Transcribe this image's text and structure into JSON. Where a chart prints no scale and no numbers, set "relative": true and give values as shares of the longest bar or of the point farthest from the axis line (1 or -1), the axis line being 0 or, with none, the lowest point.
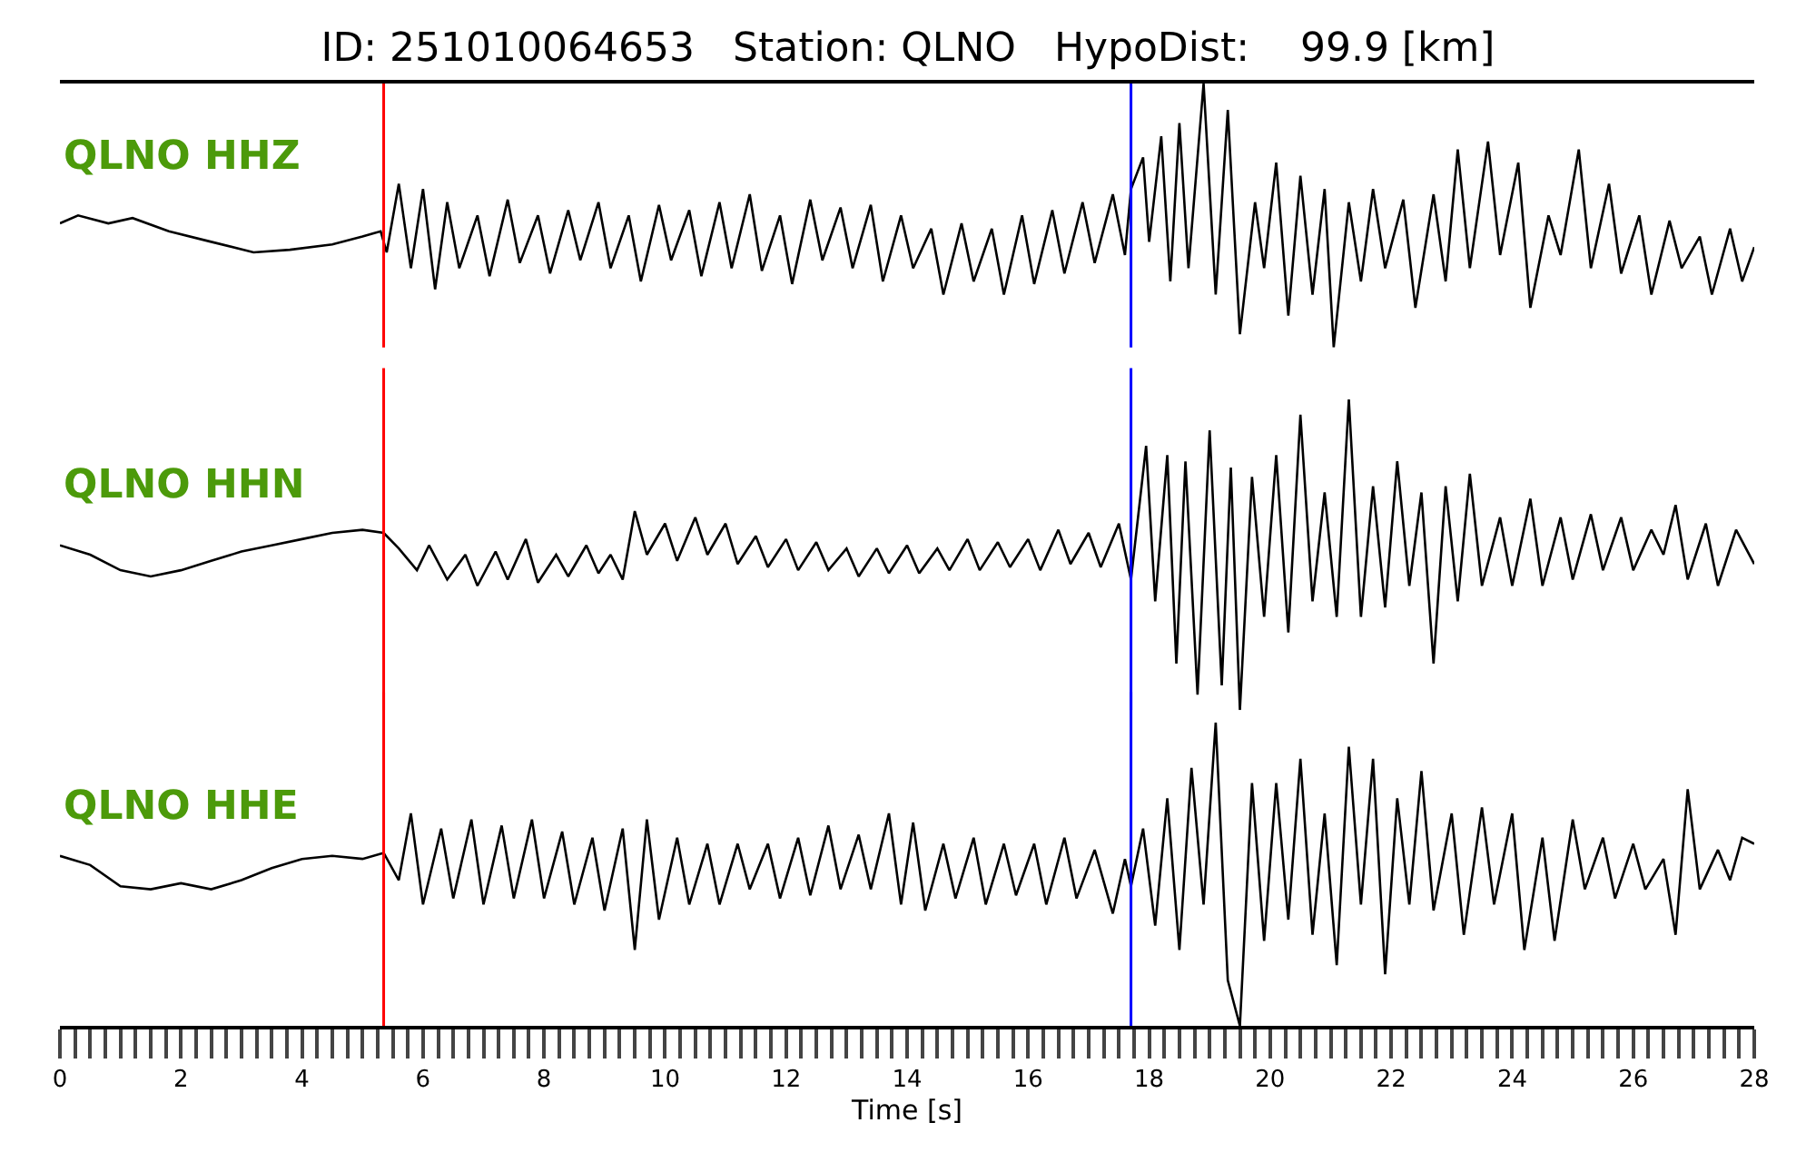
{
  "chart_data": [
    {
      "type": "line",
      "title": "ID: 251010064653   Station: QLNO   HypoDist:    99.9 [km]",
      "relative": true,
      "xlim": [
        0,
        28
      ],
      "tick_labels": false,
      "ref_lines": [
        {
          "axis": "x",
          "value": 5.35,
          "color": "#ff0000"
        },
        {
          "axis": "x",
          "value": 17.7,
          "color": "#0000ff"
        }
      ],
      "series": [
        {
          "name": "QLNO HHZ",
          "color": "#000000",
          "x": [
            0,
            0.3,
            0.8,
            1.2,
            1.8,
            2.5,
            3.2,
            3.8,
            4.5,
            5.0,
            5.3,
            5.4,
            5.6,
            5.8,
            6.0,
            6.2,
            6.4,
            6.6,
            6.9,
            7.1,
            7.4,
            7.6,
            7.9,
            8.1,
            8.4,
            8.6,
            8.9,
            9.1,
            9.4,
            9.6,
            9.9,
            10.1,
            10.4,
            10.6,
            10.9,
            11.1,
            11.4,
            11.6,
            11.9,
            12.1,
            12.4,
            12.6,
            12.9,
            13.1,
            13.4,
            13.6,
            13.9,
            14.1,
            14.4,
            14.6,
            14.9,
            15.1,
            15.4,
            15.6,
            15.9,
            16.1,
            16.4,
            16.6,
            16.9,
            17.1,
            17.4,
            17.6,
            17.7,
            17.9,
            18.0,
            18.2,
            18.35,
            18.5,
            18.65,
            18.9,
            19.1,
            19.3,
            19.5,
            19.75,
            19.9,
            20.1,
            20.3,
            20.5,
            20.7,
            20.9,
            21.05,
            21.3,
            21.5,
            21.7,
            21.9,
            22.2,
            22.4,
            22.7,
            22.9,
            23.1,
            23.3,
            23.6,
            23.8,
            24.1,
            24.3,
            24.6,
            24.8,
            25.1,
            25.3,
            25.6,
            25.8,
            26.1,
            26.3,
            26.6,
            26.8,
            27.1,
            27.3,
            27.6,
            27.8,
            28.0
          ],
          "values": [
            0.47,
            0.5,
            0.47,
            0.49,
            0.44,
            0.4,
            0.36,
            0.37,
            0.39,
            0.42,
            0.44,
            0.36,
            0.62,
            0.3,
            0.6,
            0.22,
            0.55,
            0.3,
            0.5,
            0.27,
            0.56,
            0.32,
            0.5,
            0.28,
            0.52,
            0.33,
            0.55,
            0.3,
            0.5,
            0.25,
            0.54,
            0.33,
            0.52,
            0.27,
            0.55,
            0.3,
            0.58,
            0.29,
            0.5,
            0.24,
            0.56,
            0.33,
            0.53,
            0.3,
            0.54,
            0.25,
            0.5,
            0.3,
            0.45,
            0.2,
            0.47,
            0.25,
            0.45,
            0.2,
            0.5,
            0.24,
            0.52,
            0.28,
            0.55,
            0.32,
            0.58,
            0.35,
            0.6,
            0.72,
            0.4,
            0.8,
            0.25,
            0.85,
            0.3,
            1.0,
            0.2,
            0.9,
            0.05,
            0.55,
            0.3,
            0.7,
            0.12,
            0.65,
            0.2,
            0.6,
            0.0,
            0.55,
            0.25,
            0.6,
            0.3,
            0.56,
            0.15,
            0.58,
            0.25,
            0.75,
            0.3,
            0.78,
            0.35,
            0.7,
            0.15,
            0.5,
            0.35,
            0.75,
            0.3,
            0.62,
            0.28,
            0.5,
            0.2,
            0.48,
            0.3,
            0.42,
            0.2,
            0.45,
            0.25,
            0.38
          ]
        }
      ]
    },
    {
      "type": "line",
      "relative": true,
      "xlim": [
        0,
        28
      ],
      "tick_labels": false,
      "ref_lines": [
        {
          "axis": "x",
          "value": 5.35,
          "color": "#ff0000"
        },
        {
          "axis": "x",
          "value": 17.7,
          "color": "#0000ff"
        }
      ],
      "series": [
        {
          "name": "QLNO HHN",
          "color": "#000000",
          "x": [
            0,
            0.5,
            1.0,
            1.5,
            2.0,
            2.5,
            3.0,
            3.5,
            4.0,
            4.5,
            5.0,
            5.35,
            5.6,
            5.9,
            6.1,
            6.4,
            6.7,
            6.9,
            7.2,
            7.4,
            7.7,
            7.9,
            8.2,
            8.4,
            8.7,
            8.9,
            9.1,
            9.3,
            9.5,
            9.7,
            10.0,
            10.2,
            10.5,
            10.7,
            11.0,
            11.2,
            11.5,
            11.7,
            12.0,
            12.2,
            12.5,
            12.7,
            13.0,
            13.2,
            13.5,
            13.7,
            14.0,
            14.2,
            14.5,
            14.7,
            15.0,
            15.2,
            15.5,
            15.7,
            16.0,
            16.2,
            16.5,
            16.7,
            17.0,
            17.2,
            17.5,
            17.7,
            17.95,
            18.1,
            18.3,
            18.45,
            18.6,
            18.8,
            19.0,
            19.2,
            19.35,
            19.5,
            19.7,
            19.9,
            20.1,
            20.3,
            20.5,
            20.7,
            20.9,
            21.1,
            21.3,
            21.5,
            21.7,
            21.9,
            22.1,
            22.3,
            22.5,
            22.7,
            22.9,
            23.1,
            23.3,
            23.5,
            23.8,
            24.0,
            24.3,
            24.5,
            24.8,
            25.0,
            25.3,
            25.5,
            25.8,
            26.0,
            26.3,
            26.5,
            26.7,
            26.9,
            27.2,
            27.4,
            27.7,
            28.0
          ],
          "values": [
            0.53,
            0.5,
            0.45,
            0.43,
            0.45,
            0.48,
            0.51,
            0.53,
            0.55,
            0.57,
            0.58,
            0.57,
            0.52,
            0.45,
            0.53,
            0.42,
            0.5,
            0.4,
            0.51,
            0.42,
            0.55,
            0.41,
            0.5,
            0.43,
            0.53,
            0.44,
            0.5,
            0.42,
            0.64,
            0.5,
            0.6,
            0.48,
            0.62,
            0.5,
            0.6,
            0.47,
            0.56,
            0.46,
            0.55,
            0.45,
            0.54,
            0.45,
            0.52,
            0.43,
            0.52,
            0.44,
            0.53,
            0.44,
            0.52,
            0.45,
            0.55,
            0.45,
            0.54,
            0.46,
            0.55,
            0.45,
            0.58,
            0.47,
            0.57,
            0.46,
            0.6,
            0.42,
            0.85,
            0.35,
            0.82,
            0.15,
            0.8,
            0.05,
            0.9,
            0.08,
            0.78,
            0.0,
            0.75,
            0.3,
            0.82,
            0.25,
            0.95,
            0.35,
            0.7,
            0.3,
            1.0,
            0.3,
            0.72,
            0.33,
            0.8,
            0.4,
            0.7,
            0.15,
            0.72,
            0.35,
            0.76,
            0.4,
            0.62,
            0.4,
            0.68,
            0.4,
            0.62,
            0.42,
            0.63,
            0.45,
            0.62,
            0.45,
            0.58,
            0.5,
            0.66,
            0.42,
            0.6,
            0.4,
            0.58,
            0.47
          ]
        }
      ]
    },
    {
      "type": "line",
      "relative": true,
      "xlim": [
        0,
        28
      ],
      "tick_labels": "x",
      "xlabel": "Time [s]",
      "xticks": [
        0,
        {
          "value": 0.25,
          "label": null
        },
        {
          "value": 0.5,
          "label": null
        },
        {
          "value": 0.75,
          "label": null
        },
        {
          "value": 1,
          "label": null
        },
        {
          "value": 1.25,
          "label": null
        },
        {
          "value": 1.5,
          "label": null
        },
        {
          "value": 1.75,
          "label": null
        },
        2,
        {
          "value": 2.25,
          "label": null
        },
        {
          "value": 2.5,
          "label": null
        },
        {
          "value": 2.75,
          "label": null
        },
        {
          "value": 3,
          "label": null
        },
        {
          "value": 3.25,
          "label": null
        },
        {
          "value": 3.5,
          "label": null
        },
        {
          "value": 3.75,
          "label": null
        },
        4,
        {
          "value": 4.25,
          "label": null
        },
        {
          "value": 4.5,
          "label": null
        },
        {
          "value": 4.75,
          "label": null
        },
        {
          "value": 5,
          "label": null
        },
        {
          "value": 5.25,
          "label": null
        },
        {
          "value": 5.5,
          "label": null
        },
        {
          "value": 5.75,
          "label": null
        },
        6,
        {
          "value": 6.25,
          "label": null
        },
        {
          "value": 6.5,
          "label": null
        },
        {
          "value": 6.75,
          "label": null
        },
        {
          "value": 7,
          "label": null
        },
        {
          "value": 7.25,
          "label": null
        },
        {
          "value": 7.5,
          "label": null
        },
        {
          "value": 7.75,
          "label": null
        },
        8,
        {
          "value": 8.25,
          "label": null
        },
        {
          "value": 8.5,
          "label": null
        },
        {
          "value": 8.75,
          "label": null
        },
        {
          "value": 9,
          "label": null
        },
        {
          "value": 9.25,
          "label": null
        },
        {
          "value": 9.5,
          "label": null
        },
        {
          "value": 9.75,
          "label": null
        },
        10,
        {
          "value": 10.25,
          "label": null
        },
        {
          "value": 10.5,
          "label": null
        },
        {
          "value": 10.75,
          "label": null
        },
        {
          "value": 11,
          "label": null
        },
        {
          "value": 11.25,
          "label": null
        },
        {
          "value": 11.5,
          "label": null
        },
        {
          "value": 11.75,
          "label": null
        },
        12,
        {
          "value": 12.25,
          "label": null
        },
        {
          "value": 12.5,
          "label": null
        },
        {
          "value": 12.75,
          "label": null
        },
        {
          "value": 13,
          "label": null
        },
        {
          "value": 13.25,
          "label": null
        },
        {
          "value": 13.5,
          "label": null
        },
        {
          "value": 13.75,
          "label": null
        },
        14,
        {
          "value": 14.25,
          "label": null
        },
        {
          "value": 14.5,
          "label": null
        },
        {
          "value": 14.75,
          "label": null
        },
        {
          "value": 15,
          "label": null
        },
        {
          "value": 15.25,
          "label": null
        },
        {
          "value": 15.5,
          "label": null
        },
        {
          "value": 15.75,
          "label": null
        },
        16,
        {
          "value": 16.25,
          "label": null
        },
        {
          "value": 16.5,
          "label": null
        },
        {
          "value": 16.75,
          "label": null
        },
        {
          "value": 17,
          "label": null
        },
        {
          "value": 17.25,
          "label": null
        },
        {
          "value": 17.5,
          "label": null
        },
        {
          "value": 17.75,
          "label": null
        },
        18,
        {
          "value": 18.25,
          "label": null
        },
        {
          "value": 18.5,
          "label": null
        },
        {
          "value": 18.75,
          "label": null
        },
        {
          "value": 19,
          "label": null
        },
        {
          "value": 19.25,
          "label": null
        },
        {
          "value": 19.5,
          "label": null
        },
        {
          "value": 19.75,
          "label": null
        },
        20,
        {
          "value": 20.25,
          "label": null
        },
        {
          "value": 20.5,
          "label": null
        },
        {
          "value": 20.75,
          "label": null
        },
        {
          "value": 21,
          "label": null
        },
        {
          "value": 21.25,
          "label": null
        },
        {
          "value": 21.5,
          "label": null
        },
        {
          "value": 21.75,
          "label": null
        },
        22,
        {
          "value": 22.25,
          "label": null
        },
        {
          "value": 22.5,
          "label": null
        },
        {
          "value": 22.75,
          "label": null
        },
        {
          "value": 23,
          "label": null
        },
        {
          "value": 23.25,
          "label": null
        },
        {
          "value": 23.5,
          "label": null
        },
        {
          "value": 23.75,
          "label": null
        },
        24,
        {
          "value": 24.25,
          "label": null
        },
        {
          "value": 24.5,
          "label": null
        },
        {
          "value": 24.75,
          "label": null
        },
        {
          "value": 25,
          "label": null
        },
        {
          "value": 25.25,
          "label": null
        },
        {
          "value": 25.5,
          "label": null
        },
        {
          "value": 25.75,
          "label": null
        },
        26,
        {
          "value": 26.25,
          "label": null
        },
        {
          "value": 26.5,
          "label": null
        },
        {
          "value": 26.75,
          "label": null
        },
        {
          "value": 27,
          "label": null
        },
        {
          "value": 27.25,
          "label": null
        },
        {
          "value": 27.5,
          "label": null
        },
        {
          "value": 27.75,
          "label": null
        },
        28
      ],
      "ref_lines": [
        {
          "axis": "x",
          "value": 5.35,
          "color": "#ff0000"
        },
        {
          "axis": "x",
          "value": 17.7,
          "color": "#0000ff"
        }
      ],
      "series": [
        {
          "name": "QLNO HHE",
          "color": "#000000",
          "x": [
            0,
            0.5,
            1.0,
            1.5,
            2.0,
            2.5,
            3.0,
            3.5,
            4.0,
            4.5,
            5.0,
            5.35,
            5.6,
            5.8,
            6.0,
            6.3,
            6.5,
            6.8,
            7.0,
            7.3,
            7.5,
            7.8,
            8.0,
            8.3,
            8.5,
            8.8,
            9.0,
            9.3,
            9.5,
            9.7,
            9.9,
            10.2,
            10.4,
            10.7,
            10.9,
            11.2,
            11.4,
            11.7,
            11.9,
            12.2,
            12.4,
            12.7,
            12.9,
            13.2,
            13.4,
            13.7,
            13.9,
            14.1,
            14.3,
            14.6,
            14.8,
            15.1,
            15.3,
            15.6,
            15.8,
            16.1,
            16.3,
            16.6,
            16.8,
            17.1,
            17.4,
            17.6,
            17.7,
            17.9,
            18.1,
            18.3,
            18.5,
            18.7,
            18.9,
            19.1,
            19.3,
            19.5,
            19.7,
            19.9,
            20.1,
            20.3,
            20.5,
            20.7,
            20.9,
            21.1,
            21.3,
            21.5,
            21.7,
            21.9,
            22.1,
            22.3,
            22.5,
            22.7,
            23.0,
            23.2,
            23.5,
            23.7,
            24.0,
            24.2,
            24.5,
            24.7,
            25.0,
            25.2,
            25.5,
            25.7,
            26.0,
            26.2,
            26.5,
            26.7,
            26.9,
            27.1,
            27.4,
            27.6,
            27.8,
            28.0
          ],
          "values": [
            0.56,
            0.53,
            0.46,
            0.45,
            0.47,
            0.45,
            0.48,
            0.52,
            0.55,
            0.56,
            0.55,
            0.57,
            0.48,
            0.7,
            0.4,
            0.65,
            0.42,
            0.68,
            0.4,
            0.66,
            0.42,
            0.68,
            0.42,
            0.64,
            0.4,
            0.62,
            0.38,
            0.65,
            0.25,
            0.68,
            0.35,
            0.62,
            0.4,
            0.6,
            0.4,
            0.6,
            0.45,
            0.6,
            0.42,
            0.62,
            0.43,
            0.66,
            0.45,
            0.63,
            0.45,
            0.7,
            0.4,
            0.67,
            0.38,
            0.6,
            0.42,
            0.62,
            0.4,
            0.6,
            0.43,
            0.6,
            0.4,
            0.62,
            0.42,
            0.58,
            0.37,
            0.55,
            0.46,
            0.65,
            0.33,
            0.75,
            0.25,
            0.85,
            0.4,
            1.0,
            0.15,
            0.0,
            0.8,
            0.28,
            0.8,
            0.35,
            0.88,
            0.3,
            0.7,
            0.2,
            0.92,
            0.4,
            0.88,
            0.17,
            0.75,
            0.4,
            0.84,
            0.38,
            0.7,
            0.3,
            0.72,
            0.4,
            0.7,
            0.25,
            0.62,
            0.28,
            0.68,
            0.45,
            0.62,
            0.42,
            0.6,
            0.45,
            0.55,
            0.3,
            0.78,
            0.45,
            0.58,
            0.48,
            0.62,
            0.6
          ]
        }
      ]
    }
  ]
}
